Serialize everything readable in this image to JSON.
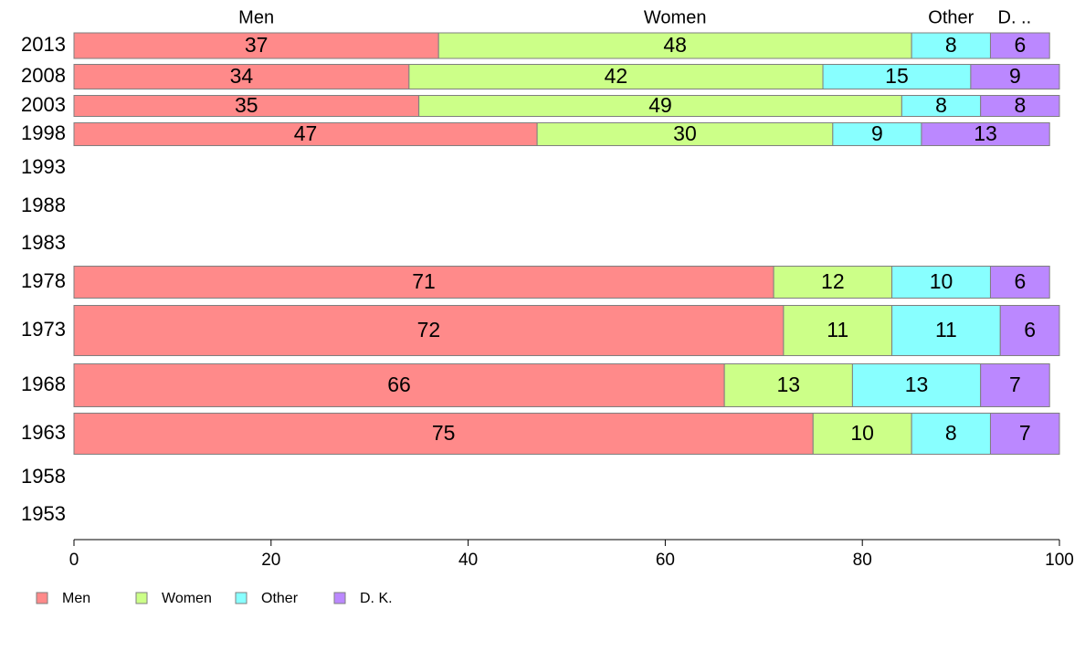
{
  "chart_data": {
    "type": "bar",
    "orientation": "horizontal",
    "stacked": true,
    "categories": [
      "2013",
      "2008",
      "2003",
      "1998",
      "1993",
      "1988",
      "1983",
      "1978",
      "1973",
      "1968",
      "1963",
      "1958",
      "1953"
    ],
    "series": [
      {
        "name": "Men",
        "color": "#ff8a8a",
        "values": [
          37,
          34,
          35,
          47,
          null,
          null,
          null,
          71,
          72,
          66,
          75,
          null,
          null
        ]
      },
      {
        "name": "Women",
        "color": "#ccff88",
        "values": [
          48,
          42,
          49,
          30,
          null,
          null,
          null,
          12,
          11,
          13,
          10,
          null,
          null
        ]
      },
      {
        "name": "Other",
        "color": "#88ffff",
        "values": [
          8,
          15,
          8,
          9,
          null,
          null,
          null,
          10,
          11,
          13,
          8,
          null,
          null
        ]
      },
      {
        "name": "D. K.",
        "color": "#bb88ff",
        "values": [
          6,
          9,
          8,
          13,
          null,
          null,
          null,
          6,
          6,
          7,
          7,
          null,
          null
        ]
      }
    ],
    "top_labels": [
      "Men",
      "Women",
      "Other",
      "D. .."
    ],
    "xlim": [
      0,
      100
    ],
    "xticks": [
      "0",
      "20",
      "40",
      "60",
      "80",
      "100"
    ],
    "legend_position": "bottom-left",
    "grid": false
  }
}
